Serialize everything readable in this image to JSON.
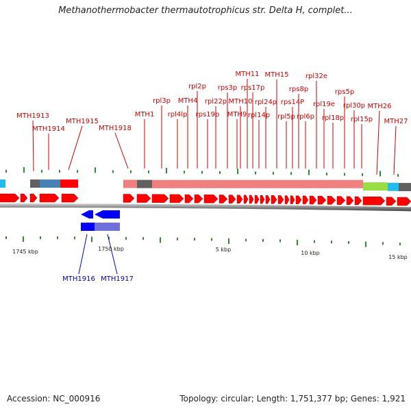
{
  "title": "Methanothermobacter thermautotrophicus str. Delta H, complet...",
  "footer": {
    "accession": "Accession: NC_000916",
    "topology": "Topology: circular; Length: 1,751,377 bp; Genes: 1,921"
  },
  "colors": {
    "feature_red": "#ff0000",
    "feature_blue": "#0000ff",
    "label_red": "#cc0000",
    "label_blue": "#0000cc",
    "tick_green": "#338833",
    "backbone_gray": "#888888",
    "rrna_pink": "#f08080",
    "gray_block": "#606060",
    "steel_blue": "#4682b4",
    "lime": "#99dd44",
    "cyan": "#22bbee"
  },
  "scale_labels": [
    "1745 kbp",
    "1750 kbp",
    "5 kbp",
    "10 kbp",
    "15 kbp"
  ],
  "top_labels": [
    "MTH1913",
    "MTH1914",
    "MTH1915",
    "MTH1918",
    "MTH1",
    "rpl3p",
    "rpl4lp",
    "MTH4",
    "rpl2p",
    "rpl22p",
    "rps19p",
    "rps3p",
    "MTH11",
    "MTH10",
    "MTH9",
    "rps17p",
    "rpl14p",
    "rpl24p",
    "MTH15",
    "rps14P",
    "rpl5p",
    "rps8p",
    "rpl6p",
    "rpl32e",
    "rpl19e",
    "rpl18p",
    "rps5p",
    "rpl30p",
    "rpl15p",
    "MTH26",
    "MTH27"
  ],
  "bottom_labels": [
    "MTH1916",
    "MTH1917"
  ]
}
